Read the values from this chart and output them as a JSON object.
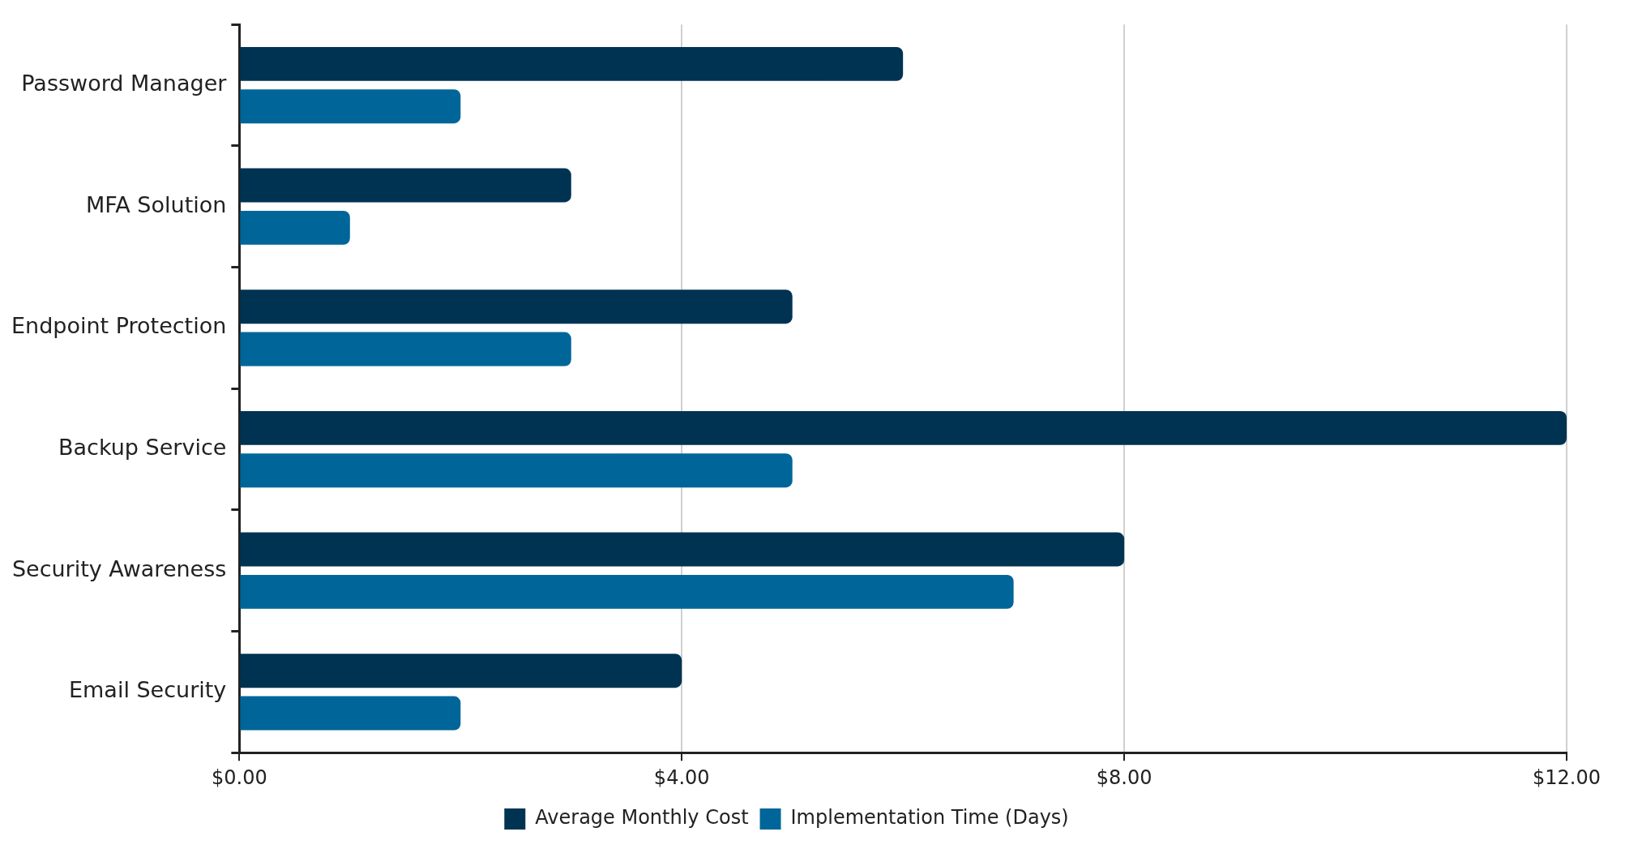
{
  "chart_data": {
    "type": "bar",
    "orientation": "horizontal",
    "categories": [
      "Password Manager",
      "MFA Solution",
      "Endpoint Protection",
      "Backup Service",
      "Security Awareness",
      "Email Security"
    ],
    "series": [
      {
        "name": "Average Monthly Cost",
        "color": "#003352",
        "values": [
          6,
          3,
          5,
          12,
          8,
          4
        ]
      },
      {
        "name": "Implementation Time (Days)",
        "color": "#006699",
        "values": [
          2,
          1,
          3,
          5,
          7,
          2
        ]
      }
    ],
    "xlim": [
      0,
      12
    ],
    "xticks": [
      {
        "value": 0,
        "label": "$0.00"
      },
      {
        "value": 4,
        "label": "$4.00"
      },
      {
        "value": 8,
        "label": "$8.00"
      },
      {
        "value": 12,
        "label": "$12.00"
      }
    ],
    "grid": "x",
    "legend": "bottom"
  }
}
